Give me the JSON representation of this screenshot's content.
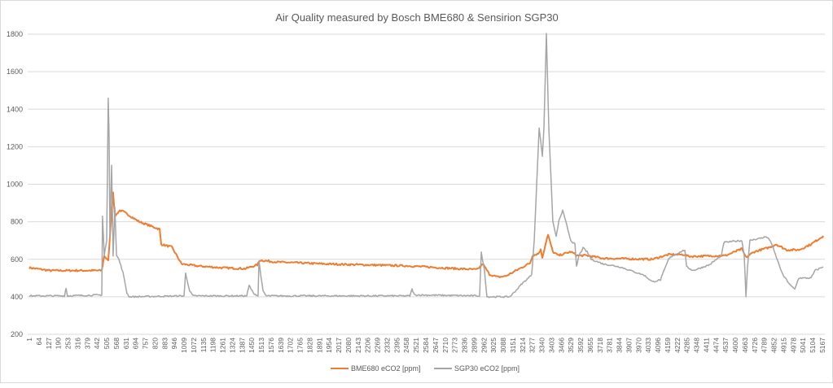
{
  "chart_data": {
    "type": "line",
    "title": "Air Quality measured by Bosch BME680 & Sensirion SGP30",
    "xlabel": "",
    "ylabel": "",
    "ylim": [
      200,
      1800
    ],
    "y_ticks": [
      200,
      400,
      600,
      800,
      1000,
      1200,
      1400,
      1600,
      1800
    ],
    "xlim": [
      1,
      5180
    ],
    "x_ticks": [
      1,
      64,
      127,
      190,
      253,
      316,
      379,
      442,
      505,
      568,
      631,
      694,
      757,
      820,
      883,
      946,
      1009,
      1072,
      1135,
      1198,
      1261,
      1324,
      1387,
      1450,
      1513,
      1576,
      1639,
      1702,
      1765,
      1828,
      1891,
      1954,
      2017,
      2080,
      2143,
      2206,
      2269,
      2332,
      2395,
      2458,
      2521,
      2584,
      2647,
      2710,
      2773,
      2836,
      2899,
      2962,
      3025,
      3088,
      3151,
      3214,
      3277,
      3340,
      3403,
      3466,
      3529,
      3592,
      3655,
      3718,
      3781,
      3844,
      3907,
      3970,
      4033,
      4096,
      4159,
      4222,
      4285,
      4348,
      4411,
      4474,
      4537,
      4600,
      4663,
      4726,
      4789,
      4852,
      4915,
      4978,
      5041,
      5104,
      5167
    ],
    "grid": true,
    "legend_position": "bottom",
    "series": [
      {
        "name": "BME680 eCO2 [ppm]",
        "color": "#ed7d31",
        "points": [
          [
            1,
            555
          ],
          [
            134,
            540
          ],
          [
            473,
            540
          ],
          [
            489,
            620
          ],
          [
            515,
            590
          ],
          [
            547,
            960
          ],
          [
            558,
            830
          ],
          [
            590,
            860
          ],
          [
            611,
            855
          ],
          [
            717,
            800
          ],
          [
            850,
            760
          ],
          [
            860,
            680
          ],
          [
            929,
            665
          ],
          [
            993,
            575
          ],
          [
            1088,
            565
          ],
          [
            1247,
            555
          ],
          [
            1407,
            550
          ],
          [
            1486,
            570
          ],
          [
            1502,
            595
          ],
          [
            1619,
            585
          ],
          [
            1937,
            575
          ],
          [
            2467,
            565
          ],
          [
            2786,
            550
          ],
          [
            2918,
            545
          ],
          [
            2955,
            575
          ],
          [
            2998,
            520
          ],
          [
            3051,
            505
          ],
          [
            3104,
            510
          ],
          [
            3263,
            580
          ],
          [
            3279,
            620
          ],
          [
            3316,
            630
          ],
          [
            3332,
            650
          ],
          [
            3343,
            610
          ],
          [
            3369,
            700
          ],
          [
            3380,
            730
          ],
          [
            3411,
            640
          ],
          [
            3448,
            620
          ],
          [
            3528,
            640
          ],
          [
            3571,
            620
          ],
          [
            3634,
            620
          ],
          [
            3740,
            605
          ],
          [
            4058,
            600
          ],
          [
            4164,
            625
          ],
          [
            4270,
            625
          ],
          [
            4297,
            615
          ],
          [
            4536,
            620
          ],
          [
            4642,
            655
          ],
          [
            4669,
            610
          ],
          [
            4722,
            640
          ],
          [
            4828,
            665
          ],
          [
            4865,
            680
          ],
          [
            4934,
            650
          ],
          [
            5014,
            650
          ],
          [
            5093,
            680
          ],
          [
            5173,
            725
          ]
        ]
      },
      {
        "name": "SGP30 eCO2 [ppm]",
        "color": "#a5a5a5",
        "points": [
          [
            1,
            405
          ],
          [
            230,
            405
          ],
          [
            240,
            445
          ],
          [
            250,
            405
          ],
          [
            473,
            410
          ],
          [
            478,
            830
          ],
          [
            489,
            620
          ],
          [
            505,
            700
          ],
          [
            515,
            1460
          ],
          [
            521,
            1250
          ],
          [
            526,
            720
          ],
          [
            537,
            1100
          ],
          [
            547,
            620
          ],
          [
            558,
            880
          ],
          [
            569,
            620
          ],
          [
            584,
            600
          ],
          [
            611,
            530
          ],
          [
            637,
            420
          ],
          [
            653,
            400
          ],
          [
            1009,
            405
          ],
          [
            1019,
            525
          ],
          [
            1046,
            430
          ],
          [
            1067,
            405
          ],
          [
            1417,
            405
          ],
          [
            1433,
            460
          ],
          [
            1460,
            420
          ],
          [
            1491,
            405
          ],
          [
            1497,
            590
          ],
          [
            1523,
            430
          ],
          [
            1544,
            405
          ],
          [
            2480,
            405
          ],
          [
            2494,
            440
          ],
          [
            2510,
            410
          ],
          [
            2934,
            405
          ],
          [
            2945,
            635
          ],
          [
            2966,
            540
          ],
          [
            2982,
            400
          ],
          [
            3130,
            400
          ],
          [
            3167,
            430
          ],
          [
            3210,
            470
          ],
          [
            3252,
            500
          ],
          [
            3273,
            520
          ],
          [
            3290,
            700
          ],
          [
            3306,
            1000
          ],
          [
            3322,
            1300
          ],
          [
            3332,
            1230
          ],
          [
            3343,
            1150
          ],
          [
            3353,
            1300
          ],
          [
            3369,
            1800
          ],
          [
            3385,
            1300
          ],
          [
            3401,
            1000
          ],
          [
            3411,
            800
          ],
          [
            3433,
            720
          ],
          [
            3449,
            800
          ],
          [
            3475,
            860
          ],
          [
            3502,
            780
          ],
          [
            3528,
            700
          ],
          [
            3555,
            680
          ],
          [
            3565,
            560
          ],
          [
            3581,
            620
          ],
          [
            3608,
            660
          ],
          [
            3634,
            640
          ],
          [
            3661,
            600
          ],
          [
            3740,
            575
          ],
          [
            3846,
            560
          ],
          [
            4006,
            515
          ],
          [
            4059,
            480
          ],
          [
            4112,
            490
          ],
          [
            4165,
            600
          ],
          [
            4191,
            620
          ],
          [
            4271,
            650
          ],
          [
            4282,
            560
          ],
          [
            4324,
            540
          ],
          [
            4430,
            570
          ],
          [
            4510,
            620
          ],
          [
            4525,
            690
          ],
          [
            4642,
            700
          ],
          [
            4658,
            620
          ],
          [
            4669,
            400
          ],
          [
            4679,
            560
          ],
          [
            4695,
            700
          ],
          [
            4801,
            720
          ],
          [
            4828,
            700
          ],
          [
            4907,
            520
          ],
          [
            4960,
            460
          ],
          [
            4987,
            440
          ],
          [
            5013,
            500
          ],
          [
            5093,
            500
          ],
          [
            5119,
            540
          ],
          [
            5172,
            560
          ]
        ]
      }
    ]
  }
}
